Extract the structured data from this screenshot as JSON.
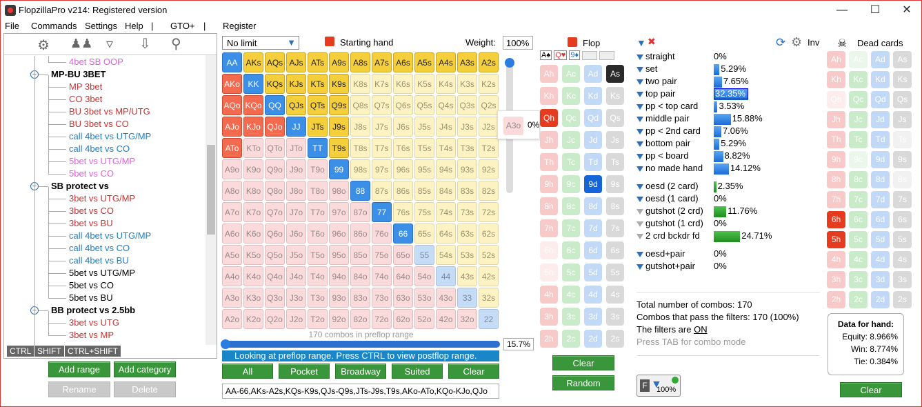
{
  "window": {
    "title": "FlopzillaPro v214: Registered version"
  },
  "menu": [
    "File",
    "Commands",
    "Settings",
    "Help",
    "|",
    "GTO+",
    "|",
    "Register"
  ],
  "tree": {
    "items": [
      {
        "label": "4bet SB OOP",
        "color": "#e060e0",
        "level": 2,
        "y": 0
      },
      {
        "label": "MP-BU 3BET",
        "color": "#000",
        "level": 1,
        "bold": true,
        "y": 1
      },
      {
        "label": "MP 3bet",
        "color": "#d03030",
        "level": 2,
        "y": 2
      },
      {
        "label": "CO 3bet",
        "color": "#d03030",
        "level": 2,
        "y": 3
      },
      {
        "label": "BU 3bet vs MP/UTG",
        "color": "#d03030",
        "level": 2,
        "y": 4
      },
      {
        "label": "BU 3bet vs CO",
        "color": "#d03030",
        "level": 2,
        "y": 5
      },
      {
        "label": "call 4bet vs UTG/MP",
        "color": "#1a7fc8",
        "level": 2,
        "y": 6
      },
      {
        "label": "call 4bet vs CO",
        "color": "#1a7fc8",
        "level": 2,
        "y": 7
      },
      {
        "label": "5bet vs UTG/MP",
        "color": "#e060e0",
        "level": 2,
        "y": 8
      },
      {
        "label": "5bet vs CO",
        "color": "#e060e0",
        "level": 2,
        "y": 9
      },
      {
        "label": "SB protect vs",
        "color": "#000",
        "level": 1,
        "bold": true,
        "y": 10
      },
      {
        "label": "3bet vs UTG/MP",
        "color": "#d03030",
        "level": 2,
        "y": 11
      },
      {
        "label": "3bet vs CO",
        "color": "#d03030",
        "level": 2,
        "y": 12
      },
      {
        "label": "3bet vs BU",
        "color": "#d03030",
        "level": 2,
        "y": 13
      },
      {
        "label": "call 4bet vs UTG/MP",
        "color": "#1a7fc8",
        "level": 2,
        "y": 14
      },
      {
        "label": "call 4bet vs CO",
        "color": "#1a7fc8",
        "level": 2,
        "y": 15
      },
      {
        "label": "call 4bet vs BU",
        "color": "#1a7fc8",
        "level": 2,
        "y": 16
      },
      {
        "label": "5bet vs UTG/MP",
        "color": "#000",
        "level": 2,
        "y": 17
      },
      {
        "label": "5bet vs CO",
        "color": "#000",
        "level": 2,
        "y": 18
      },
      {
        "label": "5bet vs BU",
        "color": "#000",
        "level": 2,
        "y": 19
      },
      {
        "label": "BB protect vs 2.5bb",
        "color": "#000",
        "level": 1,
        "bold": true,
        "y": 20
      },
      {
        "label": "3bet vs UTG",
        "color": "#d03030",
        "level": 2,
        "y": 21
      },
      {
        "label": "3bet vs MP",
        "color": "#d03030",
        "level": 2,
        "y": 22
      }
    ],
    "keys": [
      "CTRL",
      "SHIFT",
      "CTRL+SHIFT"
    ],
    "buttons": {
      "add_range": "Add range",
      "add_category": "Add category",
      "rename": "Rename",
      "delete": "Delete"
    }
  },
  "range": {
    "game": "No limit",
    "header": "Starting hand",
    "weight_label": "Weight:",
    "weight": "100%",
    "combos_text": "170 combos in preflop range",
    "percent": "15.7%",
    "percent_value": 15.7,
    "status": "Looking at preflop range. Press CTRL to view postflop range.",
    "buttons": [
      "All",
      "Pocket",
      "Broadway",
      "Suited",
      "Clear"
    ],
    "range_text": "AA-66,AKs-A2s,KQs-K9s,QJs-Q9s,JTs-J9s,T9s,AKo-ATo,KQo-KJo,QJo",
    "tooltip_hand": "A3o",
    "tooltip_pct": "0%",
    "selected": [
      "AA",
      "KK",
      "QQ",
      "JJ",
      "TT",
      "99",
      "88",
      "77",
      "66",
      "AKs",
      "AQs",
      "AJs",
      "ATs",
      "A9s",
      "A8s",
      "A7s",
      "A6s",
      "A5s",
      "A4s",
      "A3s",
      "A2s",
      "KQs",
      "KJs",
      "KTs",
      "K9s",
      "QJs",
      "QTs",
      "Q9s",
      "JTs",
      "J9s",
      "T9s",
      "AKo",
      "AQo",
      "AJo",
      "ATo",
      "KQo",
      "KJo",
      "QJo"
    ]
  },
  "flop": {
    "header": "Flop",
    "ranks": [
      "A",
      "K",
      "Q",
      "J",
      "T",
      "9",
      "8",
      "7",
      "6",
      "5",
      "4",
      "3",
      "2"
    ],
    "selected": [
      "Qh",
      "As",
      "9d"
    ],
    "faded": [
      "6h",
      "5h"
    ],
    "buttons": {
      "clear": "Clear",
      "random": "Random"
    }
  },
  "filters": {
    "inv": "Inv",
    "rows": [
      {
        "label": "straight",
        "pct": "0%",
        "value": 0,
        "color": "blue"
      },
      {
        "label": "set",
        "pct": "5.29%",
        "value": 5.29,
        "color": "blue"
      },
      {
        "label": "two pair",
        "pct": "7.65%",
        "value": 7.65,
        "color": "blue"
      },
      {
        "label": "top pair",
        "pct": "32.35%",
        "value": 32.35,
        "color": "blue",
        "highlight": true
      },
      {
        "label": "pp < top card",
        "pct": "3.53%",
        "value": 3.53,
        "color": "blue"
      },
      {
        "label": "middle pair",
        "pct": "15.88%",
        "value": 15.88,
        "color": "blue"
      },
      {
        "label": "pp < 2nd card",
        "pct": "7.06%",
        "value": 7.06,
        "color": "blue"
      },
      {
        "label": "bottom pair",
        "pct": "5.29%",
        "value": 5.29,
        "color": "blue"
      },
      {
        "label": "pp < board",
        "pct": "8.82%",
        "value": 8.82,
        "color": "blue"
      },
      {
        "label": "no made hand",
        "pct": "14.12%",
        "value": 14.12,
        "color": "blue"
      },
      {
        "label": "oesd (2 card)",
        "pct": "2.35%",
        "value": 2.35,
        "color": "green",
        "gap": true
      },
      {
        "label": "oesd (1 card)",
        "pct": "0%",
        "value": 0,
        "color": "green"
      },
      {
        "label": "gutshot (2 crd)",
        "pct": "11.76%",
        "value": 11.76,
        "color": "green",
        "gray": true
      },
      {
        "label": "gutshot (1 crd)",
        "pct": "0%",
        "value": 0,
        "color": "green",
        "gray": true
      },
      {
        "label": "2 crd bckdr fd",
        "pct": "24.71%",
        "value": 24.71,
        "color": "green",
        "gray": true
      },
      {
        "label": "oesd+pair",
        "pct": "0%",
        "value": 0,
        "color": "blue",
        "gap": true
      },
      {
        "label": "gutshot+pair",
        "pct": "0%",
        "value": 0,
        "color": "blue"
      }
    ],
    "total": "Total number of combos: 170",
    "pass": "Combos that pass the filters: 170 (100%)",
    "on_prefix": "The filters are ",
    "on": "ON",
    "tab": "Press TAB for combo mode",
    "badge": "100%"
  },
  "dead": {
    "header": "Dead cards",
    "faded": [
      "Qh",
      "Ac",
      "Ts",
      "9c",
      "8s"
    ],
    "selected": [
      "6h",
      "5h"
    ],
    "data_title": "Data for hand:",
    "equity": "Equity: 8.966%",
    "win": "Win: 8.774%",
    "tie": "Tie: 0.384%",
    "clear": "Clear"
  }
}
